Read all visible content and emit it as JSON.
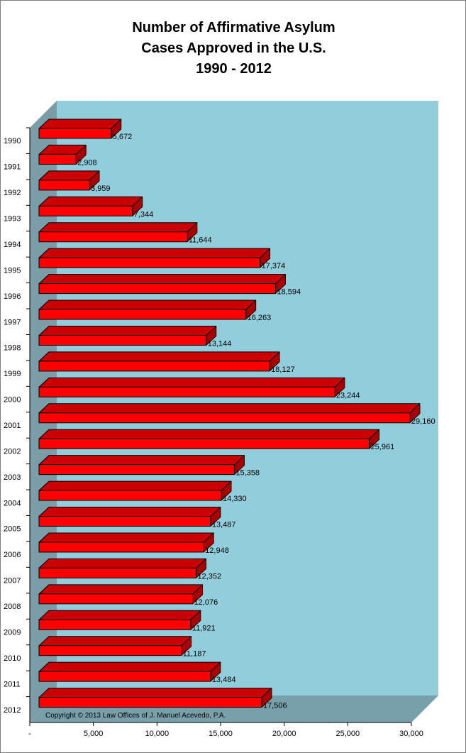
{
  "chart_data": {
    "type": "bar",
    "orientation": "horizontal",
    "style": "3d",
    "title_lines": [
      "Number of Affirmative Asylum",
      "Cases Approved in the U.S.",
      "1990 - 2012"
    ],
    "categories": [
      "1990",
      "1991",
      "1992",
      "1993",
      "1994",
      "1995",
      "1996",
      "1997",
      "1998",
      "1999",
      "2000",
      "2001",
      "2002",
      "2003",
      "2004",
      "2005",
      "2006",
      "2007",
      "2008",
      "2009",
      "2010",
      "2011",
      "2012"
    ],
    "values": [
      5672,
      2908,
      3959,
      7344,
      11644,
      17374,
      18594,
      16263,
      13144,
      18127,
      23244,
      29160,
      25961,
      15358,
      14330,
      13487,
      12948,
      12352,
      12076,
      11921,
      11187,
      13484,
      17506
    ],
    "value_labels": [
      "5,672",
      "2,908",
      "3,959",
      "7,344",
      "11,644",
      "17,374",
      "18,594",
      "16,263",
      "13,144",
      "18,127",
      "23,244",
      "29,160",
      "25,961",
      "15,358",
      "14,330",
      "13,487",
      "12,948",
      "12,352",
      "12,076",
      "11,921",
      "11,187",
      "13,484",
      "17,506"
    ],
    "x_ticks": [
      0,
      5000,
      10000,
      15000,
      20000,
      25000,
      30000
    ],
    "x_tick_labels": [
      "-",
      "5,000",
      "10,000",
      "15,000",
      "20,000",
      "25,000",
      "30,000"
    ],
    "xlim": [
      0,
      30000
    ],
    "grid": false,
    "legend": "none",
    "colors": {
      "bar_front": "#ff0000",
      "bar_top": "#cc0000",
      "bar_side": "#a80000",
      "back_wall": "#92cddc",
      "side_wall": "#7a9da8",
      "floor": "#78a0ab"
    },
    "copyright": "Copyright © 2013 Law Offices of J. Manuel Acevedo, P.A."
  }
}
